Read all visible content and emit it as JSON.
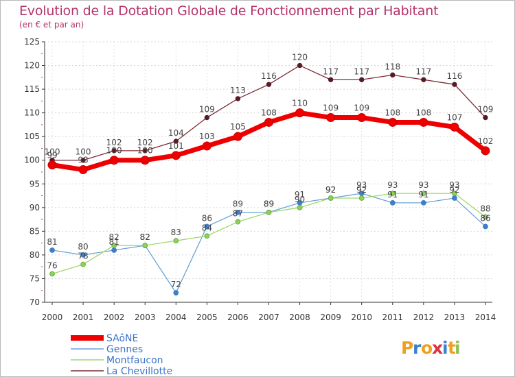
{
  "chart_data": {
    "type": "line",
    "title": "Evolution de la Dotation Globale de Fonctionnement par Habitant",
    "subtitle": "(en € et par an)",
    "xlabel": "",
    "ylabel": "",
    "ylim": [
      70,
      125
    ],
    "yticks": [
      70,
      75,
      80,
      85,
      90,
      95,
      100,
      105,
      110,
      115,
      120,
      125
    ],
    "x": [
      "2000",
      "2001",
      "2002",
      "2003",
      "2004",
      "2005",
      "2006",
      "2007",
      "2008",
      "2009",
      "2010",
      "2011",
      "2012",
      "2013",
      "2014"
    ],
    "series": [
      {
        "name": "La Chevillotte",
        "color": "#7a2a35",
        "values": [
          100,
          100,
          102,
          102,
          104,
          109,
          113,
          116,
          120,
          117,
          117,
          118,
          117,
          116,
          109
        ]
      },
      {
        "name": "Gennes",
        "color": "#6aa3d5",
        "values": [
          81,
          80,
          81,
          82,
          72,
          86,
          89,
          89,
          91,
          92,
          93,
          91,
          91,
          92,
          86
        ]
      },
      {
        "name": "Montfaucon",
        "color": "#9ed86a",
        "values": [
          76,
          78,
          82,
          82,
          83,
          84,
          87,
          89,
          90,
          92,
          92,
          93,
          93,
          93,
          88
        ]
      },
      {
        "name": "SAôNE",
        "color": "#ee0000",
        "values": [
          99,
          98,
          100,
          100,
          101,
          103,
          105,
          108,
          110,
          109,
          109,
          108,
          108,
          107,
          102
        ]
      }
    ],
    "legend": {
      "position": "bottom-left",
      "entries": [
        "SAôNE",
        "Gennes",
        "Montfaucon",
        "La Chevillotte"
      ]
    }
  },
  "logo": {
    "text": "Proxiti",
    "chars": [
      "P",
      "r",
      "o",
      "x",
      "i",
      "t",
      "i"
    ]
  }
}
